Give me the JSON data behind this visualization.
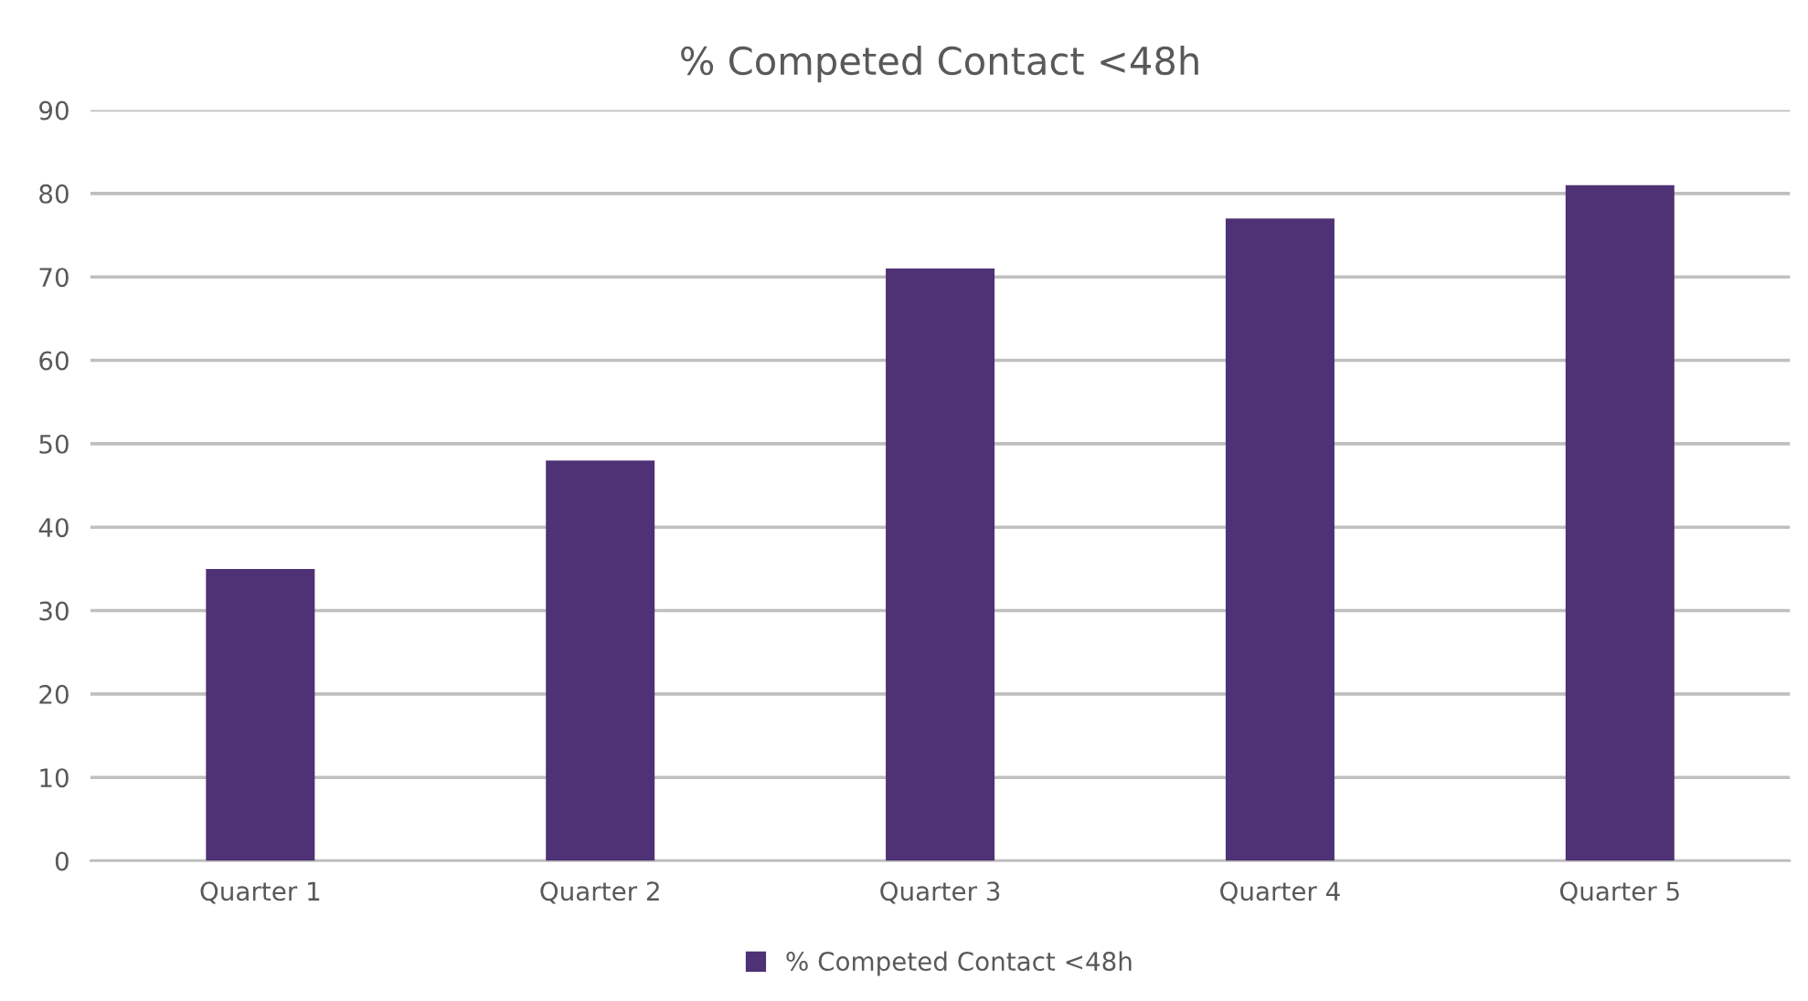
{
  "chart_data": {
    "type": "bar",
    "title": "% Competed Contact <48h",
    "categories": [
      "Quarter 1",
      "Quarter 2",
      "Quarter 3",
      "Quarter 4",
      "Quarter 5"
    ],
    "series": [
      {
        "name": "% Competed Contact <48h",
        "color": "#4f3175",
        "values": [
          35,
          48,
          71,
          77,
          81
        ]
      }
    ],
    "ylim": [
      0,
      90
    ],
    "yticks": [
      0,
      10,
      20,
      30,
      40,
      50,
      60,
      70,
      80,
      90
    ],
    "grid": "y",
    "legend": "bottom"
  }
}
